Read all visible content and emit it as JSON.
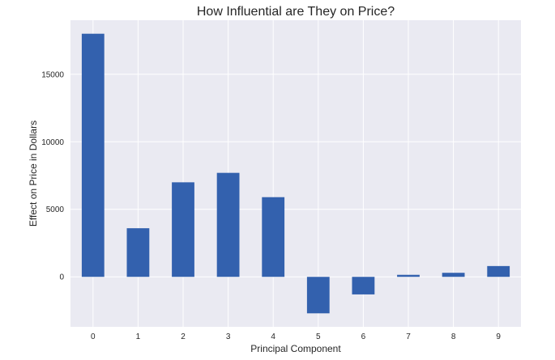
{
  "chart_data": {
    "type": "bar",
    "title": "How Influential are They on Price?",
    "xlabel": "Principal Component",
    "ylabel": "Effect on Price in Dollars",
    "categories": [
      "0",
      "1",
      "2",
      "3",
      "4",
      "5",
      "6",
      "7",
      "8",
      "9"
    ],
    "values": [
      18000,
      3600,
      7000,
      7700,
      5900,
      -2700,
      -1300,
      150,
      300,
      800
    ],
    "ylim": [
      -3700,
      19000
    ],
    "yticks": [
      0,
      5000,
      10000,
      15000
    ],
    "ytick_labels": [
      "0",
      "5000",
      "10000",
      "15000"
    ],
    "grid": true,
    "colors": {
      "bar": "#3361AE",
      "background": "#EAEAF2",
      "grid": "#FFFFFF"
    }
  }
}
